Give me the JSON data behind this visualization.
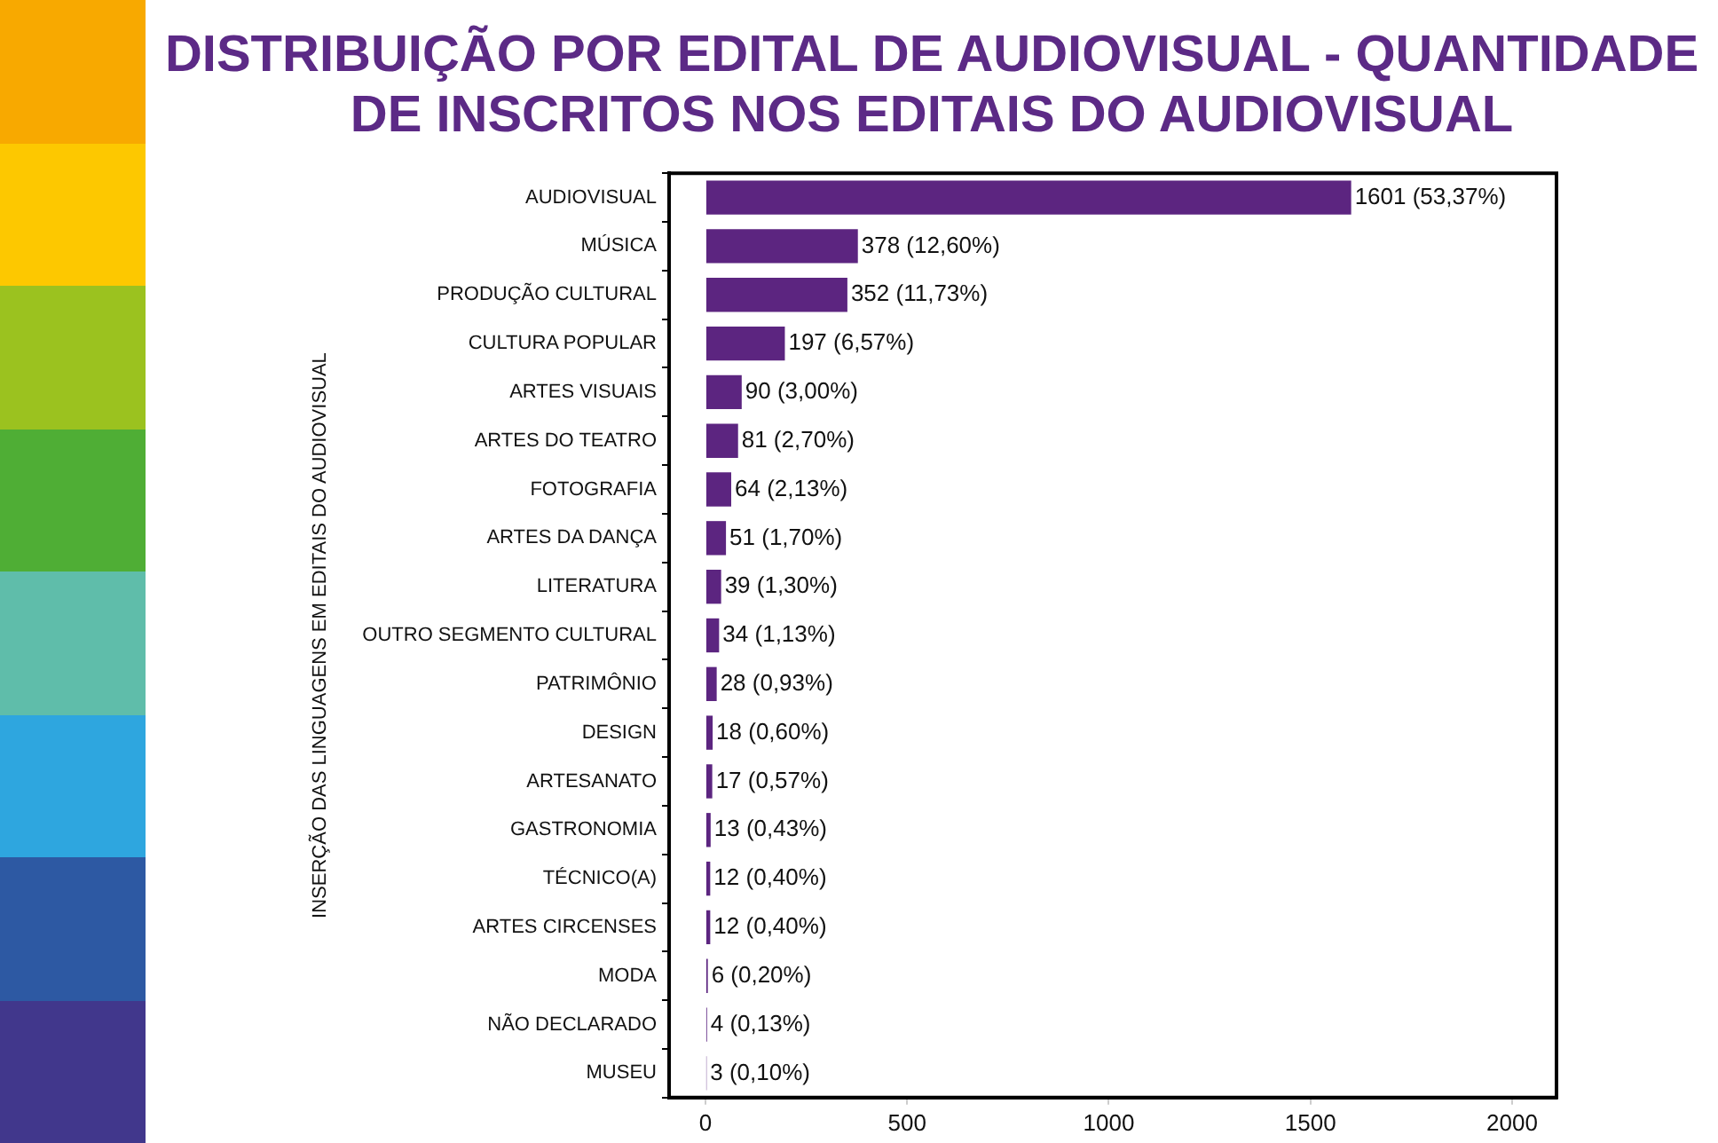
{
  "chart_data": {
    "type": "bar",
    "orientation": "horizontal",
    "title": "DISTRIBUIÇÃO POR EDITAL DE AUDIOVISUAL - QUANTIDADE DE INSCRITOS NOS EDITAIS DO AUDIOVISUAL",
    "ylabel": "INSERÇÃO DAS LINGUAGENS EM EDITAIS DO AUDIOVISUAL",
    "categories": [
      "AUDIOVISUAL",
      "MÚSICA",
      "PRODUÇÃO CULTURAL",
      "CULTURA POPULAR",
      "ARTES VISUAIS",
      "ARTES DO TEATRO",
      "FOTOGRAFIA",
      "ARTES DA DANÇA",
      "LITERATURA",
      "OUTRO SEGMENTO CULTURAL",
      "PATRIMÔNIO",
      "DESIGN",
      "ARTESANATO",
      "GASTRONOMIA",
      "TÉCNICO(A)",
      "ARTES CIRCENSES",
      "MODA",
      "NÃO DECLARADO",
      "MUSEU"
    ],
    "values": [
      1601,
      378,
      352,
      197,
      90,
      81,
      64,
      51,
      39,
      34,
      28,
      18,
      17,
      13,
      12,
      12,
      6,
      4,
      3
    ],
    "value_labels": [
      "1601 (53,37%)",
      "378 (12,60%)",
      "352 (11,73%)",
      "197 (6,57%)",
      "90 (3,00%)",
      "81 (2,70%)",
      "64 (2,13%)",
      "51 (1,70%)",
      "39 (1,30%)",
      "34 (1,13%)",
      "28 (0,93%)",
      "18 (0,60%)",
      "17 (0,57%)",
      "13 (0,43%)",
      "12 (0,40%)",
      "12 (0,40%)",
      "6 (0,20%)",
      "4 (0,13%)",
      "3 (0,10%)"
    ],
    "color": "#5c2580",
    "xlim": [
      -90,
      2110
    ],
    "xticks": [
      0,
      500,
      1000,
      1500,
      2000
    ],
    "grid": false,
    "legend": false
  }
}
